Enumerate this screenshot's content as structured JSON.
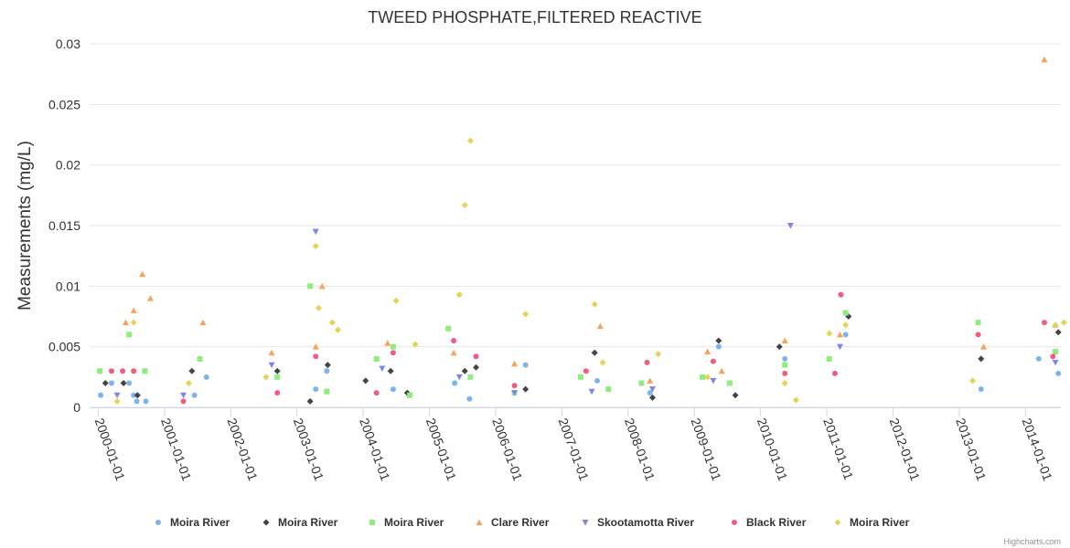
{
  "chart_data": {
    "type": "scatter",
    "title": "TWEED PHOSPHATE,FILTERED REACTIVE",
    "ylabel": "Measurements (mg/L)",
    "xlabel": "",
    "ylim": [
      0,
      0.03
    ],
    "yticks": [
      "0",
      "0.005",
      "0.01",
      "0.015",
      "0.02",
      "0.025",
      "0.03"
    ],
    "ytick_values": [
      0,
      0.005,
      0.01,
      0.015,
      0.02,
      0.025,
      0.03
    ],
    "xticks": [
      "2000-01-01",
      "2001-01-01",
      "2002-01-01",
      "2003-01-01",
      "2004-01-01",
      "2005-01-01",
      "2006-01-01",
      "2007-01-01",
      "2008-01-01",
      "2009-01-01",
      "2010-01-01",
      "2011-01-01",
      "2012-01-01",
      "2013-01-01",
      "2014-01-01"
    ],
    "xlim": [
      "1999-11-15",
      "2014-07-15"
    ],
    "grid": "horizontal",
    "legend_position": "bottom",
    "series": [
      {
        "name": "Moira River",
        "marker": "circle",
        "color": "#7cb5ec",
        "points": [
          [
            "2000-01-15",
            0.001
          ],
          [
            "2000-03-15",
            0.002
          ],
          [
            "2000-06-20",
            0.002
          ],
          [
            "2000-07-15",
            0.001
          ],
          [
            "2000-08-01",
            0.0005
          ],
          [
            "2000-09-20",
            0.0005
          ],
          [
            "2001-06-15",
            0.001
          ],
          [
            "2001-08-20",
            0.0025
          ],
          [
            "2003-04-15",
            0.0015
          ],
          [
            "2003-06-15",
            0.003
          ],
          [
            "2004-06-15",
            0.0015
          ],
          [
            "2005-05-20",
            0.002
          ],
          [
            "2005-08-10",
            0.0007
          ],
          [
            "2006-06-15",
            0.0035
          ],
          [
            "2007-07-15",
            0.0022
          ],
          [
            "2008-05-01",
            0.0012
          ],
          [
            "2009-05-15",
            0.005
          ],
          [
            "2010-05-15",
            0.004
          ],
          [
            "2011-04-15",
            0.006
          ],
          [
            "2013-05-01",
            0.0015
          ],
          [
            "2014-03-15",
            0.004
          ],
          [
            "2014-07-01",
            0.0028
          ]
        ]
      },
      {
        "name": "Moira River",
        "marker": "diamond",
        "color": "#434348",
        "points": [
          [
            "2000-02-10",
            0.002
          ],
          [
            "2000-05-20",
            0.002
          ],
          [
            "2000-08-05",
            0.001
          ],
          [
            "2001-06-01",
            0.003
          ],
          [
            "2002-09-15",
            0.003
          ],
          [
            "2003-03-15",
            0.0005
          ],
          [
            "2003-06-20",
            0.0035
          ],
          [
            "2004-01-15",
            0.0022
          ],
          [
            "2004-06-01",
            0.003
          ],
          [
            "2004-09-01",
            0.0012
          ],
          [
            "2005-07-15",
            0.003
          ],
          [
            "2005-09-15",
            0.0033
          ],
          [
            "2006-06-15",
            0.0015
          ],
          [
            "2007-07-01",
            0.0045
          ],
          [
            "2008-05-15",
            0.0008
          ],
          [
            "2009-05-15",
            0.0055
          ],
          [
            "2009-08-15",
            0.001
          ],
          [
            "2010-04-15",
            0.005
          ],
          [
            "2011-05-01",
            0.0075
          ],
          [
            "2013-05-01",
            0.004
          ],
          [
            "2014-07-01",
            0.0062
          ]
        ]
      },
      {
        "name": "Moira River",
        "marker": "square",
        "color": "#90ed7d",
        "points": [
          [
            "2000-01-10",
            0.003
          ],
          [
            "2000-06-20",
            0.006
          ],
          [
            "2000-09-15",
            0.003
          ],
          [
            "2001-07-15",
            0.004
          ],
          [
            "2002-09-15",
            0.0025
          ],
          [
            "2003-03-15",
            0.01
          ],
          [
            "2003-06-15",
            0.0013
          ],
          [
            "2004-03-15",
            0.004
          ],
          [
            "2004-06-15",
            0.005
          ],
          [
            "2004-09-15",
            0.001
          ],
          [
            "2005-04-15",
            0.0065
          ],
          [
            "2005-08-15",
            0.0025
          ],
          [
            "2006-04-15",
            0.0012
          ],
          [
            "2007-04-15",
            0.0025
          ],
          [
            "2007-09-15",
            0.0015
          ],
          [
            "2008-03-15",
            0.002
          ],
          [
            "2009-02-15",
            0.0025
          ],
          [
            "2009-07-15",
            0.002
          ],
          [
            "2010-05-15",
            0.0035
          ],
          [
            "2011-01-15",
            0.004
          ],
          [
            "2011-04-15",
            0.0078
          ],
          [
            "2013-04-15",
            0.007
          ],
          [
            "2014-06-15",
            0.0046
          ]
        ]
      },
      {
        "name": "Clare River",
        "marker": "triangle",
        "color": "#f7a35c",
        "points": [
          [
            "2000-06-01",
            0.007
          ],
          [
            "2000-07-15",
            0.008
          ],
          [
            "2000-09-01",
            0.011
          ],
          [
            "2000-10-15",
            0.009
          ],
          [
            "2001-08-01",
            0.007
          ],
          [
            "2002-08-15",
            0.0045
          ],
          [
            "2003-04-15",
            0.005
          ],
          [
            "2003-05-20",
            0.01
          ],
          [
            "2004-05-15",
            0.0053
          ],
          [
            "2005-05-15",
            0.0045
          ],
          [
            "2006-04-15",
            0.0036
          ],
          [
            "2007-08-01",
            0.0067
          ],
          [
            "2008-05-01",
            0.0022
          ],
          [
            "2009-03-15",
            0.0046
          ],
          [
            "2009-06-01",
            0.003
          ],
          [
            "2010-05-15",
            0.0055
          ],
          [
            "2011-03-15",
            0.006
          ],
          [
            "2013-05-15",
            0.005
          ],
          [
            "2014-04-15",
            0.0287
          ],
          [
            "2014-06-15",
            0.0068
          ]
        ]
      },
      {
        "name": "Skootamotta River",
        "marker": "triangle-down",
        "color": "#8085e9",
        "points": [
          [
            "2000-04-15",
            0.001
          ],
          [
            "2001-04-15",
            0.001
          ],
          [
            "2002-08-15",
            0.0035
          ],
          [
            "2003-04-15",
            0.0145
          ],
          [
            "2004-04-15",
            0.0032
          ],
          [
            "2005-06-15",
            0.0025
          ],
          [
            "2006-04-15",
            0.0012
          ],
          [
            "2007-06-15",
            0.0013
          ],
          [
            "2008-05-15",
            0.0015
          ],
          [
            "2009-04-15",
            0.0022
          ],
          [
            "2010-06-15",
            0.015
          ],
          [
            "2011-03-15",
            0.005
          ],
          [
            "2014-06-15",
            0.0037
          ]
        ]
      },
      {
        "name": "Black River",
        "marker": "circle",
        "color": "#f15c80",
        "points": [
          [
            "2000-03-15",
            0.003
          ],
          [
            "2000-05-15",
            0.003
          ],
          [
            "2000-07-15",
            0.003
          ],
          [
            "2001-04-15",
            0.0005
          ],
          [
            "2002-09-15",
            0.0012
          ],
          [
            "2003-04-15",
            0.0042
          ],
          [
            "2004-03-15",
            0.0012
          ],
          [
            "2004-06-15",
            0.0045
          ],
          [
            "2005-05-15",
            0.0055
          ],
          [
            "2005-09-15",
            0.0042
          ],
          [
            "2006-04-15",
            0.0018
          ],
          [
            "2007-05-15",
            0.003
          ],
          [
            "2008-04-15",
            0.0037
          ],
          [
            "2009-04-15",
            0.0038
          ],
          [
            "2010-05-15",
            0.0028
          ],
          [
            "2011-02-15",
            0.0028
          ],
          [
            "2011-03-20",
            0.0093
          ],
          [
            "2013-04-15",
            0.006
          ],
          [
            "2014-04-15",
            0.007
          ],
          [
            "2014-06-01",
            0.0042
          ]
        ]
      },
      {
        "name": "Moira River",
        "marker": "diamond",
        "color": "#e4d354",
        "points": [
          [
            "2000-04-15",
            0.0005
          ],
          [
            "2000-07-15",
            0.007
          ],
          [
            "2001-05-15",
            0.002
          ],
          [
            "2002-07-15",
            0.0025
          ],
          [
            "2003-04-15",
            0.0133
          ],
          [
            "2003-05-01",
            0.0082
          ],
          [
            "2003-07-15",
            0.007
          ],
          [
            "2003-08-15",
            0.0064
          ],
          [
            "2004-07-01",
            0.0088
          ],
          [
            "2004-10-15",
            0.0052
          ],
          [
            "2005-06-15",
            0.0093
          ],
          [
            "2005-07-15",
            0.0167
          ],
          [
            "2005-08-15",
            0.022
          ],
          [
            "2006-06-15",
            0.0077
          ],
          [
            "2007-07-01",
            0.0085
          ],
          [
            "2007-08-15",
            0.0037
          ],
          [
            "2008-06-15",
            0.0044
          ],
          [
            "2009-03-15",
            0.0025
          ],
          [
            "2010-05-15",
            0.002
          ],
          [
            "2010-07-15",
            0.0006
          ],
          [
            "2011-01-15",
            0.0061
          ],
          [
            "2011-04-15",
            0.0068
          ],
          [
            "2013-03-15",
            0.0022
          ],
          [
            "2014-06-15",
            0.0068
          ],
          [
            "2014-08-01",
            0.007
          ]
        ]
      }
    ]
  },
  "credits": "Highcharts.com"
}
